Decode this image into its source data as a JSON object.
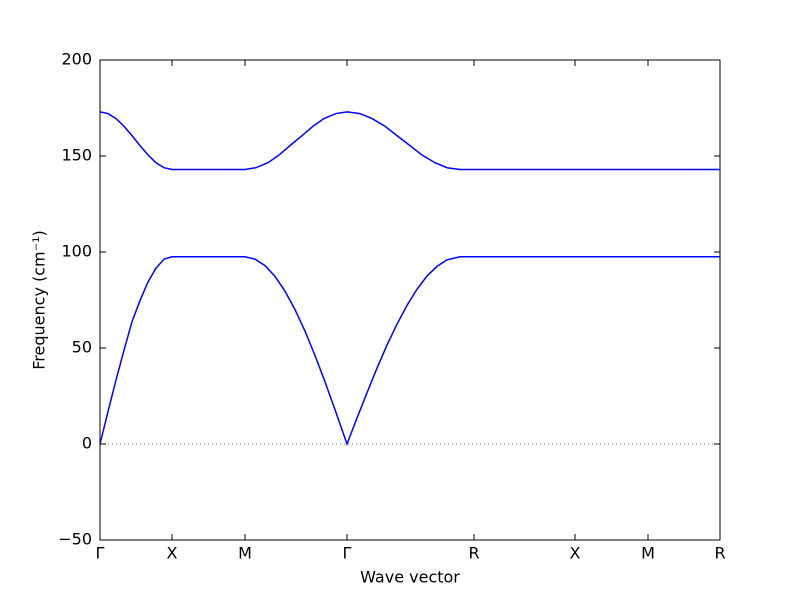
{
  "chart_data": {
    "type": "line",
    "x_label": "Wave vector",
    "y_label": "Frequency (cm⁻¹)",
    "xlim": [
      0,
      620
    ],
    "xticks": [
      {
        "value": 0,
        "label": "Γ"
      },
      {
        "value": 72,
        "label": "X"
      },
      {
        "value": 145,
        "label": "M"
      },
      {
        "value": 247,
        "label": "Γ"
      },
      {
        "value": 374,
        "label": "R"
      },
      {
        "value": 475,
        "label": "X"
      },
      {
        "value": 548,
        "label": "M"
      },
      {
        "value": 620,
        "label": "R"
      }
    ],
    "ylim": [
      -50,
      200
    ],
    "yticks": [
      {
        "value": -50,
        "label": "−50"
      },
      0,
      50,
      100,
      150,
      200
    ],
    "zero_line": true,
    "series": [
      {
        "color": "#0000ff",
        "x": [
          0,
          8,
          16,
          24,
          32,
          40,
          48,
          56,
          64,
          72,
          145,
          155,
          165,
          175,
          185,
          195,
          205,
          215,
          225,
          235,
          247,
          257,
          267,
          277,
          287,
          297,
          307,
          317,
          327,
          337,
          347,
          360,
          374,
          475,
          548,
          620
        ],
        "values": [
          0,
          16.9,
          33.3,
          48.8,
          63.7,
          74.7,
          84.4,
          91.6,
          96.3,
          97.5,
          97.5,
          96.3,
          92.9,
          87.3,
          79.6,
          70.0,
          58.8,
          46.1,
          32.4,
          17.9,
          0,
          13.5,
          26.7,
          39.5,
          51.5,
          62.4,
          72.2,
          80.6,
          87.5,
          92.5,
          95.9,
          97.5,
          97.5,
          97.5,
          97.5,
          97.5
        ]
      },
      {
        "color": "#0000ff",
        "x": [
          0,
          8,
          16,
          24,
          32,
          40,
          48,
          56,
          64,
          72,
          145,
          156,
          168,
          179,
          190,
          202,
          213,
          224,
          236,
          247,
          260,
          272,
          285,
          297,
          310,
          322,
          335,
          347,
          360,
          374,
          475,
          548,
          620
        ],
        "values": [
          173,
          172.1,
          169.5,
          165.5,
          160.6,
          155.4,
          150.5,
          146.5,
          143.9,
          143,
          143,
          143.9,
          146.5,
          150.5,
          155.4,
          160.6,
          165.5,
          169.5,
          172.1,
          173,
          172.1,
          169.5,
          165.5,
          160.6,
          155.4,
          150.5,
          146.5,
          143.9,
          143,
          143,
          143,
          143,
          143
        ]
      }
    ]
  }
}
